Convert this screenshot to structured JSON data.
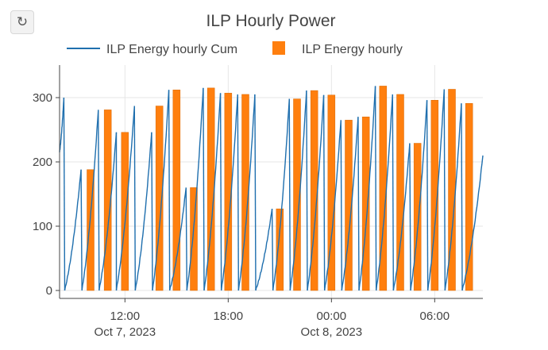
{
  "toolbar": {
    "reset_icon": "reset-icon",
    "reset_glyph": "↻"
  },
  "chart_data": {
    "type": "bar+line",
    "title": "ILP Hourly Power",
    "legend": [
      {
        "name": "ILP Energy hourly Cum",
        "kind": "line",
        "color": "#1f6fae"
      },
      {
        "name": "ILP Energy hourly",
        "kind": "bar",
        "color": "#ff7f0e"
      }
    ],
    "legend_position": "top",
    "grid": true,
    "ylim": [
      0,
      350
    ],
    "yticks": [
      0,
      100,
      200,
      300
    ],
    "xlim_hours": [
      8.2,
      32.8
    ],
    "xticks": [
      {
        "hour": 12,
        "label": "12:00",
        "sublabel": "Oct 7, 2023"
      },
      {
        "hour": 18,
        "label": "18:00",
        "sublabel": ""
      },
      {
        "hour": 24,
        "label": "00:00",
        "sublabel": "Oct 8, 2023"
      },
      {
        "hour": 30,
        "label": "06:00",
        "sublabel": ""
      }
    ],
    "bars": {
      "name": "ILP Energy hourly",
      "x_hours": [
        9,
        10,
        11,
        12,
        13,
        14,
        15,
        16,
        17,
        18,
        19,
        20,
        21,
        22,
        23,
        24,
        25,
        26,
        27,
        28,
        29,
        30,
        31,
        32
      ],
      "values": [
        0,
        188,
        281,
        246,
        0,
        287,
        312,
        160,
        315,
        307,
        305,
        0,
        127,
        298,
        311,
        304,
        265,
        270,
        318,
        305,
        229,
        296,
        313,
        291
      ]
    },
    "line": {
      "name": "ILP Energy hourly Cum",
      "segments": [
        {
          "start": 8.2,
          "end": 8.45,
          "from": 215,
          "to": 300
        },
        {
          "start": 8.5,
          "end": 9.45,
          "from": 0,
          "to": 188
        },
        {
          "start": 9.5,
          "end": 10.45,
          "from": 0,
          "to": 281
        },
        {
          "start": 10.5,
          "end": 11.5,
          "from": 0,
          "to": 246
        },
        {
          "start": 11.5,
          "end": 12.55,
          "from": 0,
          "to": 287
        },
        {
          "start": 12.6,
          "end": 13.55,
          "from": 0,
          "to": 246
        },
        {
          "start": 13.6,
          "end": 14.55,
          "from": 0,
          "to": 312
        },
        {
          "start": 14.6,
          "end": 15.55,
          "from": 0,
          "to": 160
        },
        {
          "start": 15.6,
          "end": 16.55,
          "from": 0,
          "to": 315
        },
        {
          "start": 16.6,
          "end": 17.55,
          "from": 0,
          "to": 307
        },
        {
          "start": 17.6,
          "end": 18.55,
          "from": 0,
          "to": 305
        },
        {
          "start": 18.6,
          "end": 19.55,
          "from": 0,
          "to": 305
        },
        {
          "start": 19.6,
          "end": 20.55,
          "from": 0,
          "to": 127
        },
        {
          "start": 20.6,
          "end": 21.55,
          "from": 0,
          "to": 298
        },
        {
          "start": 21.6,
          "end": 22.55,
          "from": 0,
          "to": 311
        },
        {
          "start": 22.6,
          "end": 23.55,
          "from": 0,
          "to": 304
        },
        {
          "start": 23.6,
          "end": 24.55,
          "from": 0,
          "to": 265
        },
        {
          "start": 24.6,
          "end": 25.55,
          "from": 0,
          "to": 270
        },
        {
          "start": 25.6,
          "end": 26.55,
          "from": 0,
          "to": 318
        },
        {
          "start": 26.6,
          "end": 27.55,
          "from": 0,
          "to": 305
        },
        {
          "start": 27.6,
          "end": 28.55,
          "from": 0,
          "to": 229
        },
        {
          "start": 28.6,
          "end": 29.55,
          "from": 0,
          "to": 296
        },
        {
          "start": 29.6,
          "end": 30.55,
          "from": 0,
          "to": 313
        },
        {
          "start": 30.6,
          "end": 31.55,
          "from": 0,
          "to": 291
        },
        {
          "start": 31.6,
          "end": 32.8,
          "from": 0,
          "to": 210
        }
      ]
    }
  }
}
